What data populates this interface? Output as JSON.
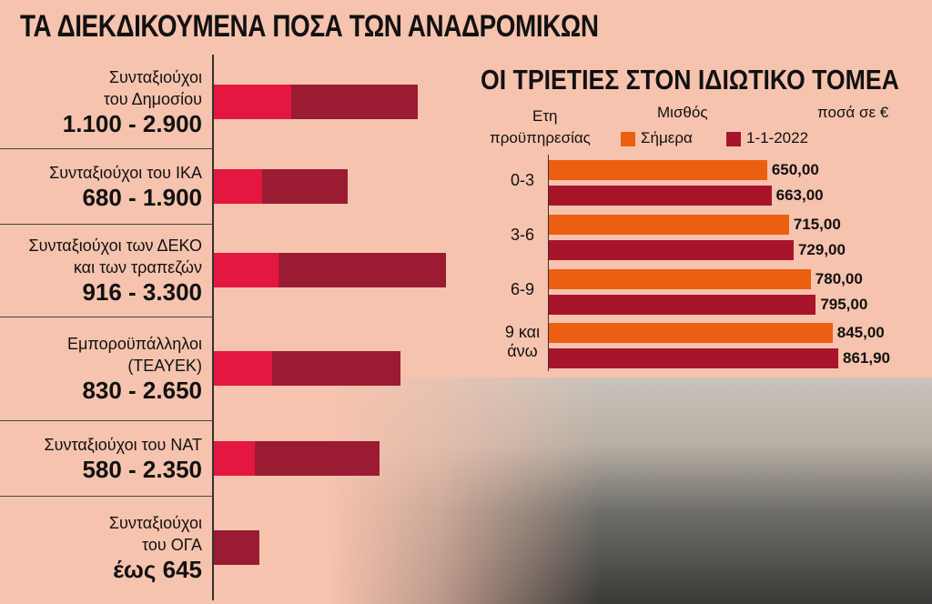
{
  "title": "ΤΑ ΔΙΕΚΔΙΚΟΥΜΕΝΑ ΠΟΣΑ ΤΩΝ ΑΝΑΔΡΟΜΙΚΩΝ",
  "colors": {
    "background": "#f6c3ae",
    "min_segment": "#e3173f",
    "max_segment": "#9b1b33",
    "today": "#ec5f12",
    "future": "#a8152a"
  },
  "chart_data": [
    {
      "type": "bar",
      "orientation": "horizontal",
      "title": "ΤΑ ΔΙΕΚΔΙΚΟΥΜΕΝΑ ΠΟΣΑ ΤΩΝ ΑΝΑΔΡΟΜΙΚΩΝ",
      "categories": [
        {
          "label_lines": [
            "Συνταξιούχοι",
            "του Δημοσίου"
          ],
          "range_label": "1.100 - 2.900",
          "min": 1100,
          "max": 2900
        },
        {
          "label_lines": [
            "Συνταξιούχοι του ΙΚΑ"
          ],
          "range_label": "680 - 1.900",
          "min": 680,
          "max": 1900
        },
        {
          "label_lines": [
            "Συνταξιούχοι των ΔΕΚΟ",
            "και των τραπεζών"
          ],
          "range_label": "916 - 3.300",
          "min": 916,
          "max": 3300
        },
        {
          "label_lines": [
            "Εμποροϋπάλληλοι",
            "(ΤΕΑΥΕΚ)"
          ],
          "range_label": "830 - 2.650",
          "min": 830,
          "max": 2650
        },
        {
          "label_lines": [
            "Συνταξιούχοι του ΝΑΤ"
          ],
          "range_label": "580 - 2.350",
          "min": 580,
          "max": 2350
        },
        {
          "label_lines": [
            "Συνταξιούχοι",
            "του ΟΓΑ"
          ],
          "range_label": "έως 645",
          "min": 0,
          "max": 645
        }
      ]
    },
    {
      "type": "bar",
      "orientation": "horizontal",
      "title": "ΟΙ ΤΡΙΕΤΙΕΣ ΣΤΟΝ ΙΔΙΩΤΙΚΟ ΤΟΜΕΑ",
      "category_header": [
        "Ετη",
        "προϋπηρεσίας"
      ],
      "value_header": "Μισθός",
      "unit_note": "ποσά σε €",
      "categories": [
        [
          "0-3"
        ],
        [
          "3-6"
        ],
        [
          "6-9"
        ],
        [
          "9 και",
          "άνω"
        ]
      ],
      "series": [
        {
          "name": "Σήμερα",
          "values": [
            650.0,
            715.0,
            780.0,
            845.0
          ],
          "labels": [
            "650,00",
            "715,00",
            "780,00",
            "845,00"
          ]
        },
        {
          "name": "1-1-2022",
          "values": [
            663.0,
            729.0,
            795.0,
            861.9
          ],
          "labels": [
            "663,00",
            "729,00",
            "795,00",
            "861,90"
          ]
        }
      ]
    }
  ]
}
